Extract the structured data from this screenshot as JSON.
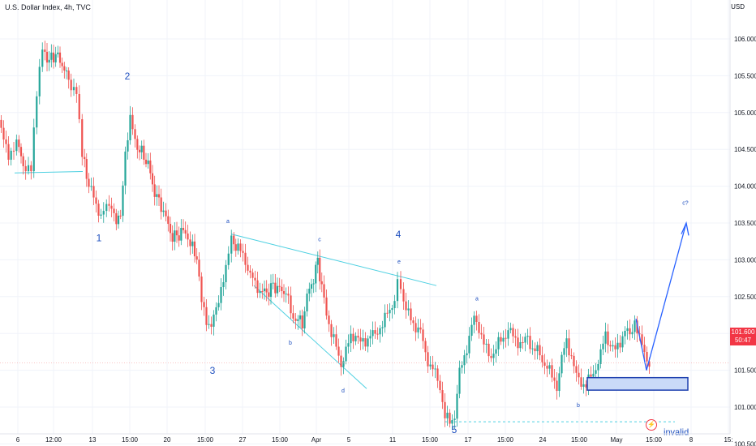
{
  "header": {
    "title": "U.S. Dollar Index, 4h, TVC",
    "unit": "USD"
  },
  "last_price": {
    "value": "101.600",
    "countdown": "50:47"
  },
  "colors": {
    "up": "#26a69a",
    "down": "#ef5350",
    "line": "#4dd0e1",
    "wave_label": "#1e4fbf",
    "arrow": "#2962ff",
    "box_fill": "#c9daf8",
    "box_stroke": "#1e40af",
    "invalid_line": "#4dd0e1",
    "axis_text": "#131722"
  },
  "icons": {
    "event_marker": "lightning-icon"
  },
  "chart_data": {
    "type": "candlestick",
    "title": "U.S. Dollar Index, 4h, TVC",
    "ylabel": "USD",
    "ylim": [
      100.3,
      106.3
    ],
    "y_ticks": [
      "106.000",
      "105.500",
      "105.000",
      "104.500",
      "104.000",
      "103.500",
      "103.000",
      "102.500",
      "102.000",
      "101.500",
      "101.000",
      "100.500"
    ],
    "x_ticks": [
      "6",
      "12:00",
      "13",
      "15:00",
      "20",
      "15:00",
      "27",
      "15:00",
      "Apr",
      "5",
      "11",
      "15:00",
      "17",
      "15:00",
      "24",
      "15:00",
      "May",
      "15:00",
      "8",
      "15:"
    ],
    "price_path": [
      [
        0,
        104.9
      ],
      [
        6,
        104.6
      ],
      [
        12,
        104.45
      ],
      [
        22,
        104.6
      ],
      [
        30,
        104.3
      ],
      [
        40,
        104.2
      ],
      [
        47,
        105.2
      ],
      [
        54,
        105.85
      ],
      [
        62,
        105.7
      ],
      [
        70,
        105.8
      ],
      [
        78,
        105.65
      ],
      [
        86,
        105.45
      ],
      [
        96,
        105.3
      ],
      [
        103,
        104.4
      ],
      [
        108,
        104.15
      ],
      [
        114,
        103.95
      ],
      [
        120,
        103.7
      ],
      [
        126,
        103.65
      ],
      [
        133,
        103.75
      ],
      [
        142,
        103.6
      ],
      [
        150,
        103.55
      ],
      [
        156,
        104.5
      ],
      [
        162,
        104.9
      ],
      [
        168,
        104.6
      ],
      [
        176,
        104.45
      ],
      [
        184,
        104.3
      ],
      [
        192,
        103.9
      ],
      [
        200,
        103.75
      ],
      [
        206,
        103.55
      ],
      [
        214,
        103.3
      ],
      [
        222,
        103.35
      ],
      [
        230,
        103.4
      ],
      [
        236,
        103.2
      ],
      [
        244,
        103.05
      ],
      [
        250,
        102.4
      ],
      [
        256,
        102.2
      ],
      [
        262,
        102.1
      ],
      [
        268,
        102.3
      ],
      [
        274,
        102.65
      ],
      [
        280,
        102.85
      ],
      [
        287,
        103.25
      ],
      [
        292,
        103.2
      ],
      [
        298,
        103.1
      ],
      [
        304,
        103.0
      ],
      [
        310,
        102.8
      ],
      [
        316,
        102.65
      ],
      [
        322,
        102.6
      ],
      [
        330,
        102.55
      ],
      [
        338,
        102.65
      ],
      [
        346,
        102.6
      ],
      [
        354,
        102.55
      ],
      [
        360,
        102.3
      ],
      [
        366,
        102.2
      ],
      [
        374,
        102.15
      ],
      [
        380,
        102.5
      ],
      [
        388,
        102.75
      ],
      [
        393,
        103.0
      ],
      [
        398,
        102.6
      ],
      [
        404,
        102.3
      ],
      [
        410,
        102.0
      ],
      [
        416,
        101.8
      ],
      [
        422,
        101.6
      ],
      [
        428,
        101.75
      ],
      [
        434,
        101.95
      ],
      [
        440,
        102.0
      ],
      [
        446,
        101.85
      ],
      [
        452,
        101.9
      ],
      [
        458,
        102.0
      ],
      [
        464,
        101.95
      ],
      [
        470,
        102.1
      ],
      [
        476,
        102.2
      ],
      [
        482,
        102.3
      ],
      [
        488,
        102.5
      ],
      [
        492,
        102.75
      ],
      [
        496,
        102.65
      ],
      [
        502,
        102.3
      ],
      [
        508,
        102.2
      ],
      [
        514,
        102.1
      ],
      [
        520,
        102.0
      ],
      [
        526,
        101.75
      ],
      [
        532,
        101.55
      ],
      [
        538,
        101.45
      ],
      [
        544,
        101.3
      ],
      [
        550,
        100.85
      ],
      [
        556,
        100.8
      ],
      [
        562,
        100.9
      ],
      [
        568,
        101.45
      ],
      [
        574,
        101.7
      ],
      [
        580,
        101.95
      ],
      [
        586,
        102.2
      ],
      [
        592,
        102.1
      ],
      [
        598,
        101.85
      ],
      [
        604,
        101.7
      ],
      [
        610,
        101.75
      ],
      [
        616,
        101.85
      ],
      [
        622,
        101.95
      ],
      [
        628,
        102.05
      ],
      [
        634,
        101.95
      ],
      [
        640,
        101.9
      ],
      [
        646,
        101.85
      ],
      [
        652,
        101.95
      ],
      [
        658,
        101.8
      ],
      [
        664,
        101.75
      ],
      [
        670,
        101.65
      ],
      [
        676,
        101.55
      ],
      [
        682,
        101.4
      ],
      [
        688,
        101.3
      ],
      [
        694,
        101.65
      ],
      [
        700,
        101.9
      ],
      [
        706,
        101.7
      ],
      [
        712,
        101.4
      ],
      [
        718,
        101.35
      ],
      [
        724,
        101.3
      ],
      [
        730,
        101.4
      ],
      [
        736,
        101.55
      ],
      [
        742,
        101.7
      ],
      [
        748,
        102.0
      ],
      [
        754,
        101.85
      ],
      [
        760,
        101.75
      ],
      [
        766,
        101.9
      ],
      [
        772,
        102.05
      ],
      [
        778,
        101.95
      ],
      [
        784,
        102.2
      ],
      [
        790,
        101.9
      ],
      [
        796,
        101.75
      ],
      [
        802,
        101.6
      ]
    ],
    "wave_labels": [
      {
        "text": "1",
        "x": 122,
        "y": 103.25,
        "size": "major"
      },
      {
        "text": "2",
        "x": 157,
        "y": 105.45,
        "size": "major"
      },
      {
        "text": "3",
        "x": 262,
        "y": 101.45,
        "size": "major"
      },
      {
        "text": "4",
        "x": 491,
        "y": 103.3,
        "size": "major"
      },
      {
        "text": "5",
        "x": 560,
        "y": 100.65,
        "size": "major"
      },
      {
        "text": "a",
        "x": 281,
        "y": 103.5,
        "size": "minor"
      },
      {
        "text": "b",
        "x": 358,
        "y": 101.85,
        "size": "minor"
      },
      {
        "text": "c",
        "x": 394,
        "y": 103.25,
        "size": "minor"
      },
      {
        "text": "d",
        "x": 423,
        "y": 101.2,
        "size": "minor"
      },
      {
        "text": "e",
        "x": 492,
        "y": 102.95,
        "size": "minor"
      },
      {
        "text": "a",
        "x": 588,
        "y": 102.45,
        "size": "minor"
      },
      {
        "text": "b",
        "x": 713,
        "y": 101.0,
        "size": "minor"
      },
      {
        "text": "c?",
        "x": 845,
        "y": 103.75,
        "size": "minor"
      }
    ],
    "annotation": {
      "invalid": "invalid"
    }
  }
}
